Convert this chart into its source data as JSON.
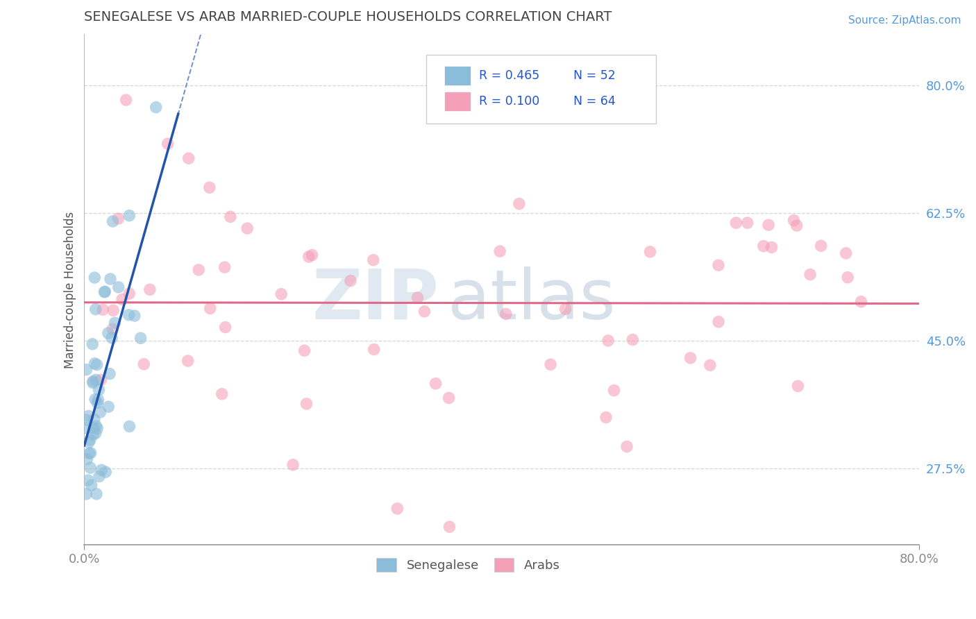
{
  "title": "SENEGALESE VS ARAB MARRIED-COUPLE HOUSEHOLDS CORRELATION CHART",
  "source_text": "Source: ZipAtlas.com",
  "ylabel": "Married-couple Households",
  "xlim": [
    0.0,
    0.8
  ],
  "ylim": [
    0.17,
    0.87
  ],
  "ytick_vals": [
    0.275,
    0.45,
    0.625,
    0.8
  ],
  "ytick_labels": [
    "27.5%",
    "45.0%",
    "62.5%",
    "80.0%"
  ],
  "xtick_vals": [
    0.0,
    0.8
  ],
  "xtick_labels": [
    "0.0%",
    "80.0%"
  ],
  "senegalese_color": "#8bbcd9",
  "arab_color": "#f4a0b8",
  "senegalese_line_color": "#2255aa",
  "arab_line_color": "#e06888",
  "background_color": "#ffffff",
  "grid_color": "#cccccc",
  "watermark_zip": "ZIP",
  "watermark_atlas": "atlas",
  "title_color": "#444444",
  "source_color": "#5599dd",
  "ytick_color": "#5599dd",
  "xtick_color": "#888888",
  "ylabel_color": "#555555"
}
